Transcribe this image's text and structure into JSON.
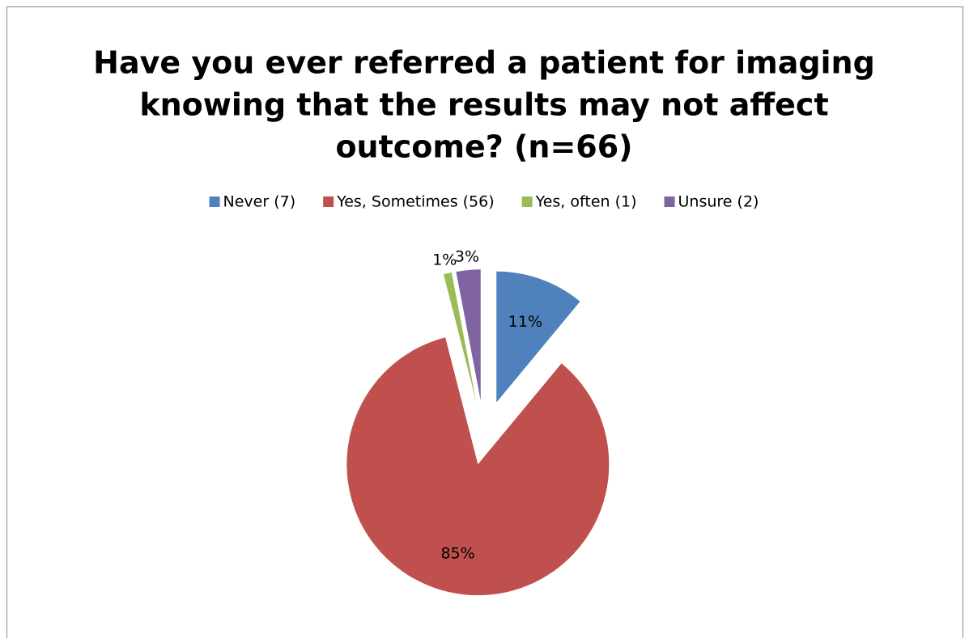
{
  "chart_data": {
    "type": "pie",
    "title": [
      "Have you ever referred a patient for imaging",
      "knowing that the results may not affect",
      "outcome? (n=66)"
    ],
    "categories": [
      "Never (7)",
      "Yes, Sometimes (56)",
      "Yes, often (1)",
      "Unsure (2)"
    ],
    "values": [
      11,
      85,
      1,
      3
    ],
    "value_labels": [
      "11%",
      "85%",
      "1%",
      "3%"
    ],
    "colors": [
      "#4f81bd",
      "#c0504d",
      "#9bbb59",
      "#8064a2"
    ],
    "legend": "top"
  }
}
